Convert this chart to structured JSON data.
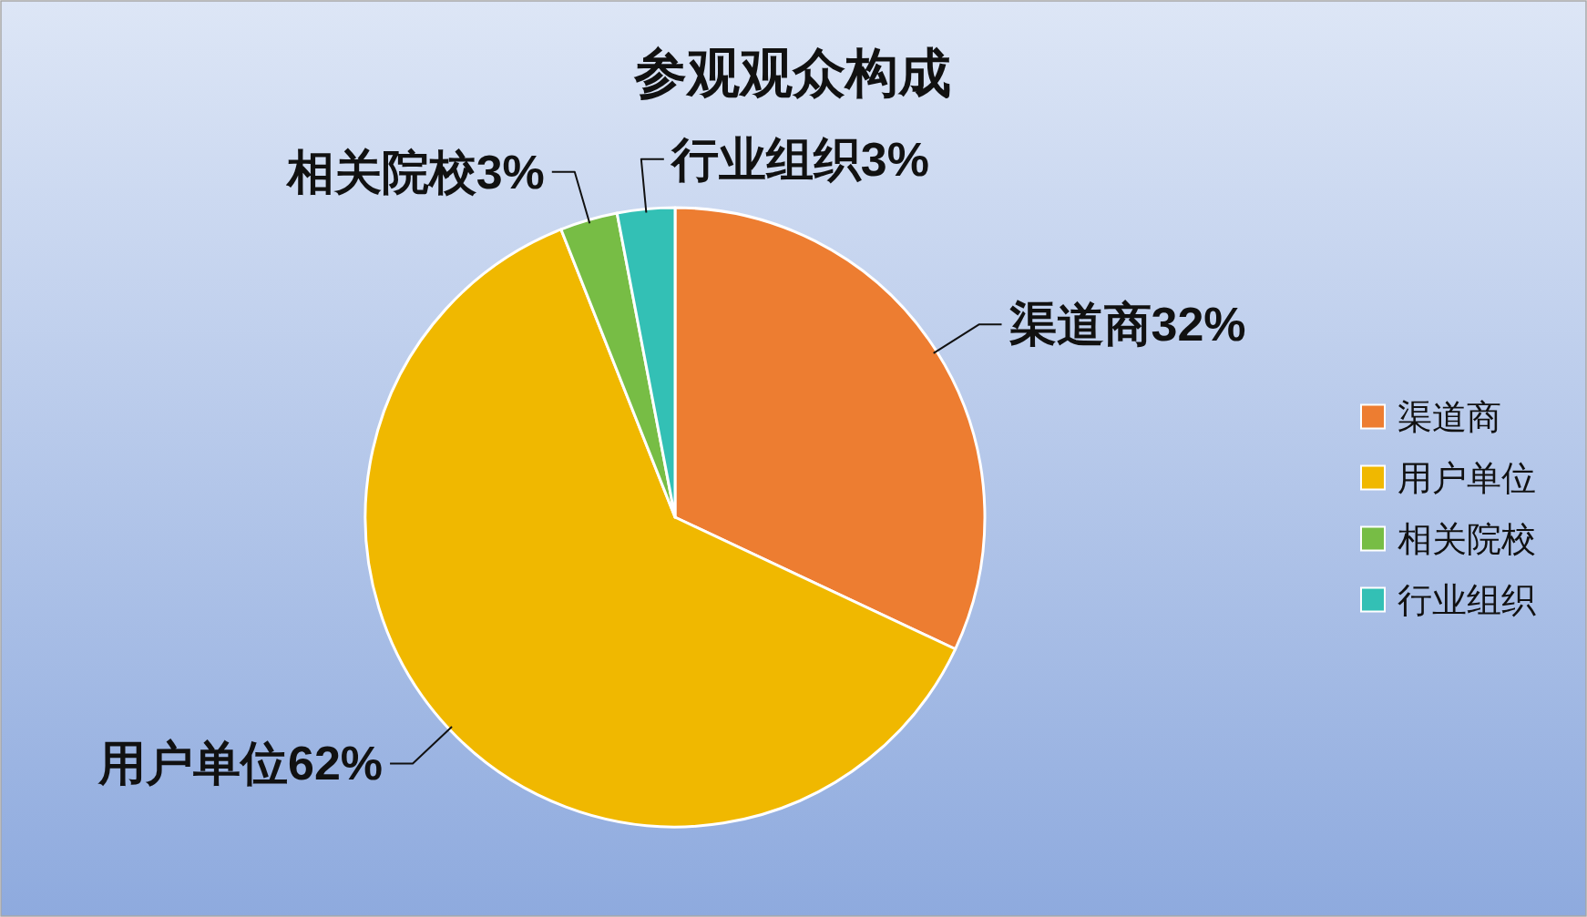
{
  "chart_data": {
    "type": "pie",
    "title": "参观观众构成",
    "categories": [
      "渠道商",
      "用户单位",
      "相关院校",
      "行业组织"
    ],
    "values": [
      32,
      62,
      3,
      3
    ],
    "colors": [
      "#ed7d31",
      "#f0b800",
      "#77bd45",
      "#33c0b5"
    ],
    "value_labels": [
      "渠道商32%",
      "用户单位62%",
      "相关院校3%",
      "行业组织3%"
    ],
    "legend": "right"
  }
}
